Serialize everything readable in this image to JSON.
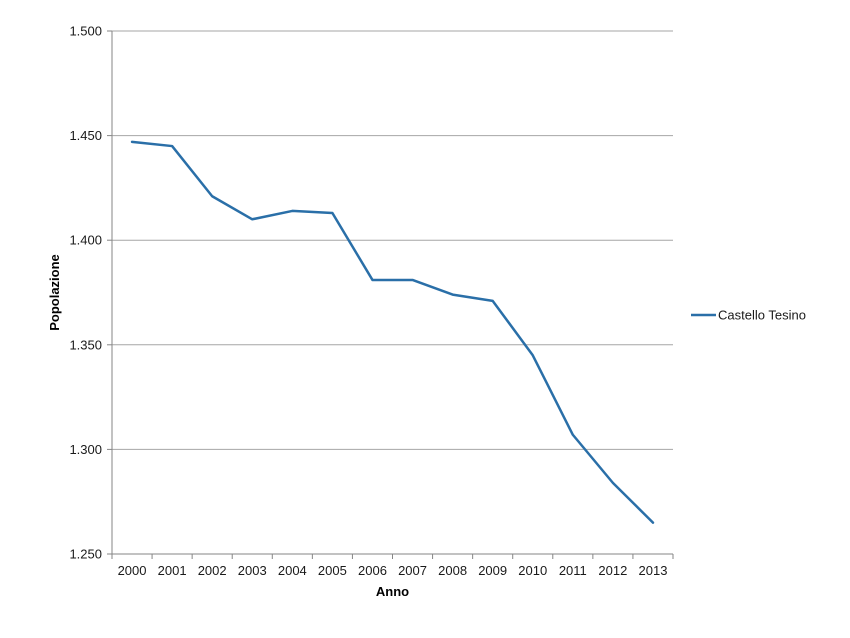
{
  "chart_data": {
    "type": "line",
    "title": "",
    "xlabel": "Anno",
    "ylabel": "Popolazione",
    "categories": [
      "2000",
      "2001",
      "2002",
      "2003",
      "2004",
      "2005",
      "2006",
      "2007",
      "2008",
      "2009",
      "2010",
      "2011",
      "2012",
      "2013"
    ],
    "series": [
      {
        "name": "Castello Tesino",
        "color": "#2a6fa8",
        "values": [
          1447,
          1445,
          1421,
          1410,
          1414,
          1413,
          1381,
          1381,
          1374,
          1371,
          1345,
          1307,
          1284,
          1265
        ]
      }
    ],
    "ylim": [
      1250,
      1500
    ],
    "yticks": [
      1250,
      1300,
      1350,
      1400,
      1450,
      1500
    ],
    "ytick_labels": [
      "1.250",
      "1.300",
      "1.350",
      "1.400",
      "1.450",
      "1.500"
    ],
    "grid": true,
    "legend_position": "right"
  }
}
